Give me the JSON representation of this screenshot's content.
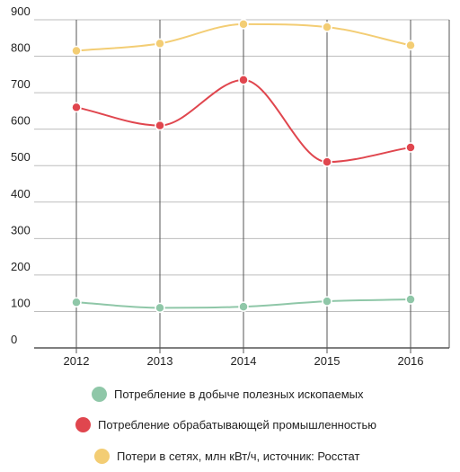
{
  "chart_data": {
    "type": "line",
    "title": "",
    "xlabel": "",
    "ylabel": "",
    "categories": [
      "2012",
      "2013",
      "2014",
      "2015",
      "2016"
    ],
    "ylim": [
      0,
      900
    ],
    "yticks": [
      "0",
      "100",
      "200",
      "300",
      "400",
      "500",
      "600",
      "700",
      "800",
      "900"
    ],
    "grid": true,
    "smooth": true,
    "legend_position": "bottom",
    "series": [
      {
        "name": "Потребление в добыче полезных ископаемых",
        "color": "#8fc7a8",
        "values": [
          125,
          110,
          113,
          128,
          133
        ]
      },
      {
        "name": "Потребление обрабатывающей промышленностью",
        "color": "#e0464e",
        "values": [
          660,
          610,
          735,
          510,
          550
        ]
      },
      {
        "name": "Потери в сетях, млн кВт/ч, источник: Росстат",
        "color": "#f3cd74",
        "values": [
          815,
          835,
          888,
          880,
          830
        ]
      }
    ]
  }
}
